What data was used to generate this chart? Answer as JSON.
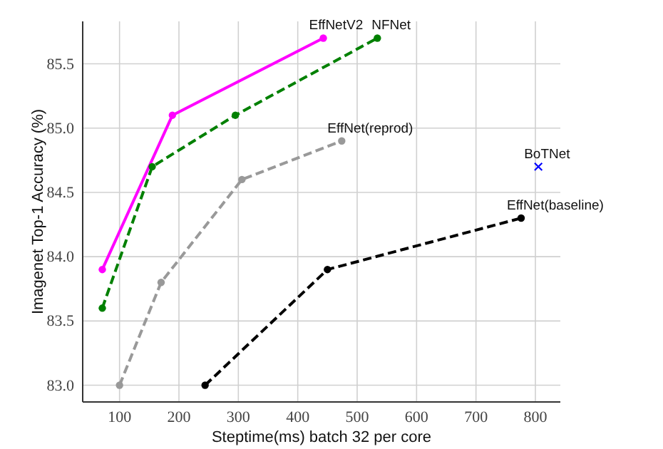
{
  "chart_data": {
    "type": "line",
    "xlabel": "Steptime(ms) batch 32 per core",
    "ylabel": "Imagenet Top-1 Accuracy (%)",
    "xlim": [
      38,
      842
    ],
    "ylim": [
      82.87,
      85.83
    ],
    "xticks": [
      100,
      200,
      300,
      400,
      500,
      600,
      700,
      800
    ],
    "yticks": [
      {
        "value": 83,
        "label": "83.0"
      },
      83.5,
      {
        "value": 84,
        "label": "84.0"
      },
      84.5,
      {
        "value": 85,
        "label": "85.0"
      },
      85.5
    ],
    "grid": true,
    "legend": false,
    "series": [
      {
        "name": "EffNetV2",
        "color": "#ff00ff",
        "x": [
          71,
          189,
          443
        ],
        "values": [
          83.9,
          85.1,
          85.7
        ],
        "marker": "circle",
        "line_style": "solid"
      },
      {
        "name": "NFNet",
        "color": "#008000",
        "x": [
          71,
          155,
          295,
          534
        ],
        "values": [
          83.6,
          84.7,
          85.1,
          85.7
        ],
        "marker": "circle",
        "line_style": "dashed"
      },
      {
        "name": "EffNet(reprod)",
        "color": "#999999",
        "x": [
          100,
          170,
          306,
          474
        ],
        "values": [
          83.0,
          83.8,
          84.6,
          84.9
        ],
        "marker": "circle",
        "line_style": "dashed"
      },
      {
        "name": "EffNet(baseline)",
        "color": "#000000",
        "x": [
          244,
          450,
          776
        ],
        "values": [
          83.0,
          83.9,
          84.3
        ],
        "marker": "circle",
        "line_style": "dashed"
      },
      {
        "name": "BoTNet",
        "type": "scatter",
        "color": "#0000ff",
        "x": [
          805
        ],
        "values": [
          84.7
        ],
        "marker": "cross"
      }
    ]
  }
}
